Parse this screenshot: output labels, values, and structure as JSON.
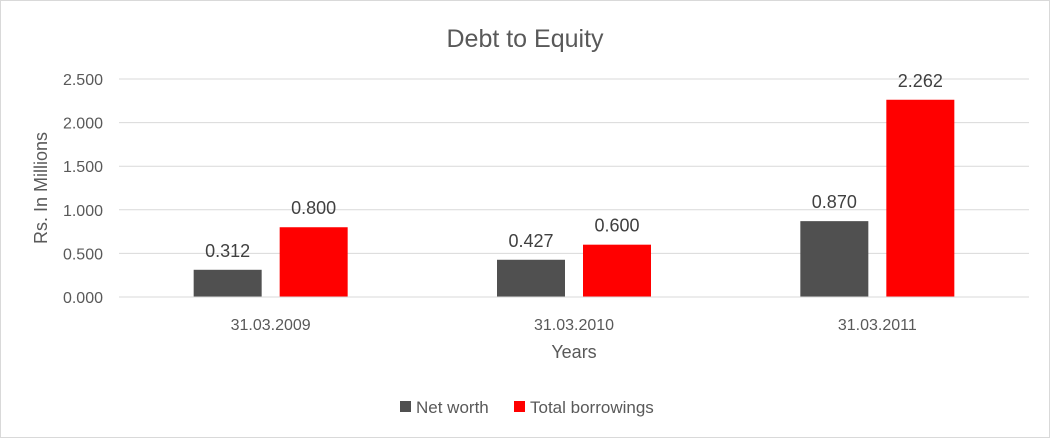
{
  "chart_data": {
    "type": "bar",
    "title": "Debt to Equity",
    "xlabel": "Years",
    "ylabel": "Rs. In Millions",
    "categories": [
      "31.03.2009",
      "31.03.2010",
      "31.03.2011"
    ],
    "series": [
      {
        "name": "Net worth",
        "color": "#505050",
        "values": [
          0.312,
          0.427,
          0.87
        ],
        "labels": [
          "0.312",
          "0.427",
          "0.870"
        ]
      },
      {
        "name": "Total borrowings",
        "color": "#ff0000",
        "values": [
          0.8,
          0.6,
          2.262
        ],
        "labels": [
          "0.800",
          "0.600",
          "2.262"
        ]
      }
    ],
    "ylim": [
      0,
      2.5
    ],
    "yticks": [
      0,
      0.5,
      1.0,
      1.5,
      2.0,
      2.5
    ],
    "ytick_labels": [
      "0.000",
      "0.500",
      "1.000",
      "1.500",
      "2.000",
      "2.500"
    ],
    "grid": true,
    "legend_position": "bottom"
  }
}
